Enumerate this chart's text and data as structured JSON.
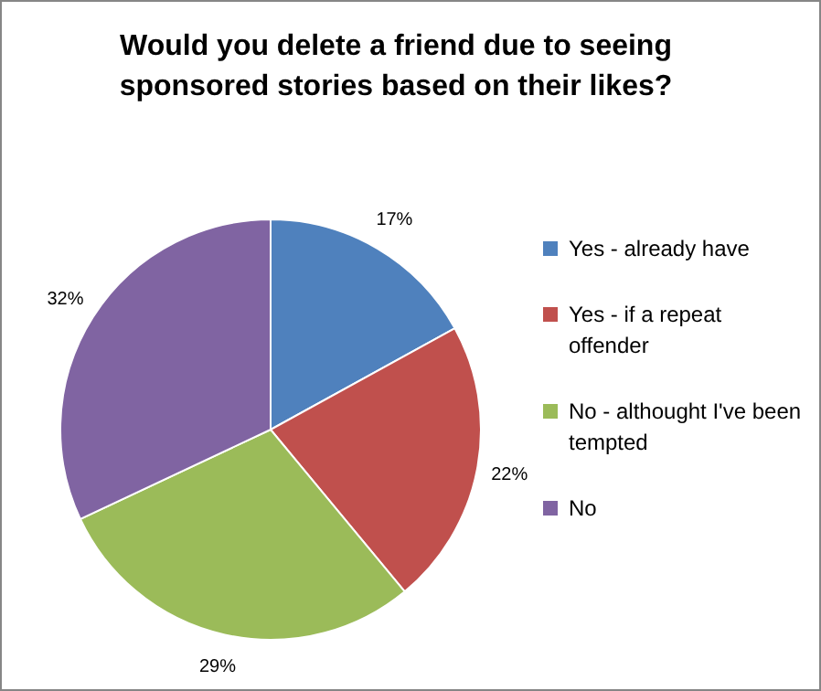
{
  "chart_data": {
    "type": "pie",
    "title": "Would you delete a friend due to seeing sponsored stories based on their likes?",
    "categories": [
      "Yes - already have",
      "Yes - if a repeat offender",
      "No - althought I've been tempted",
      "No"
    ],
    "values": [
      17,
      22,
      29,
      32
    ],
    "colors": [
      "#4f81bd",
      "#c0504d",
      "#9bbb59",
      "#8064a2"
    ],
    "value_labels": [
      "17%",
      "22%",
      "29%",
      "32%"
    ],
    "legend": "right"
  }
}
